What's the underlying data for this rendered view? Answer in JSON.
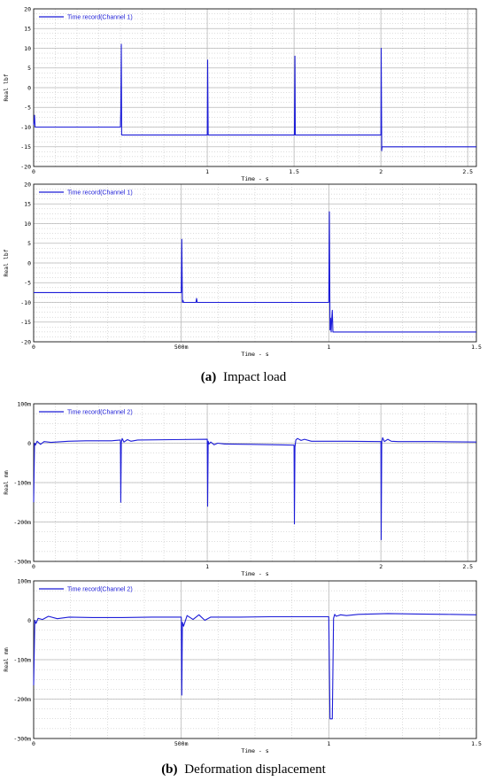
{
  "captions": {
    "a_tag": "(a)",
    "a_text": "Impact load",
    "b_tag": "(b)",
    "b_text": "Deformation displacement"
  },
  "colors": {
    "series": "#1c1cd8",
    "grid": "#b9b9b9",
    "plot_bg": "#ffffff",
    "border": "#000000"
  },
  "chart_data": [
    {
      "type": "line",
      "title": "",
      "xlabel": "Time - s",
      "ylabel": "Real lbf",
      "xlim": [
        0,
        2.55
      ],
      "ylim": [
        -20,
        20
      ],
      "xticks": [
        0,
        1,
        1.5,
        2,
        2.5
      ],
      "xtick_labels": [
        "0",
        "1",
        "1.5",
        "2",
        "2.5"
      ],
      "yticks": [
        -20,
        -15,
        -10,
        -5,
        0,
        5,
        10,
        15,
        20
      ],
      "ytick_labels": [
        "-20",
        "-15",
        "-10",
        "-5",
        "0",
        "5",
        "10",
        "15",
        "20"
      ],
      "grid": true,
      "legend": "top-left",
      "series": [
        {
          "name": "Time record(Channel 1)",
          "x": [
            0,
            0.005,
            0.008,
            0.01,
            0.015,
            0.02,
            0.24,
            0.25,
            0.252,
            0.26,
            0.5,
            0.502,
            0.505,
            0.507,
            0.51,
            0.75,
            0.752,
            0.755,
            0.757,
            0.76,
            1.0,
            1.002,
            1.005,
            1.007,
            1.01,
            1.25,
            1.252,
            1.255,
            1.257,
            1.26,
            1.5,
            1.502,
            1.505,
            1.507,
            1.51,
            1.75,
            1.752,
            1.755,
            1.757,
            1.76,
            2.0,
            2.002,
            2.005,
            2.007,
            2.01,
            2.55
          ],
          "y": [
            -9.5,
            -7,
            -10,
            -10,
            -10,
            -10,
            -10,
            -10,
            -10,
            -10,
            -10,
            -6,
            11,
            -12,
            -12,
            -12,
            -12,
            -12,
            -12,
            -12,
            -12,
            7,
            -12,
            -12,
            -12,
            -12,
            -12,
            -12,
            -12,
            -12,
            -12,
            -12,
            8,
            -12,
            -12,
            -12,
            -12,
            -12,
            -12,
            -12,
            -12,
            10,
            -16,
            -15,
            -15,
            -15
          ]
        }
      ]
    },
    {
      "type": "line",
      "title": "",
      "xlabel": "Time - s",
      "ylabel": "Real lbf",
      "xlim": [
        0,
        1.5
      ],
      "ylim": [
        -20,
        20
      ],
      "xticks": [
        0,
        0.5,
        1,
        1.5
      ],
      "xtick_labels": [
        "0",
        "500m",
        "1",
        "1.5"
      ],
      "yticks": [
        -20,
        -15,
        -10,
        -5,
        0,
        5,
        10,
        15,
        20
      ],
      "ytick_labels": [
        "-20",
        "-15",
        "-10",
        "-5",
        "0",
        "5",
        "10",
        "15",
        "20"
      ],
      "grid": true,
      "legend": "top-left",
      "series": [
        {
          "name": "Time record(Channel 1)",
          "x": [
            0,
            0.5,
            0.502,
            0.504,
            0.506,
            0.508,
            0.51,
            0.55,
            0.552,
            0.554,
            0.6,
            1.0,
            1.002,
            1.004,
            1.006,
            1.008,
            1.01,
            1.012,
            1.014,
            1.016,
            1.02,
            1.5
          ],
          "y": [
            -7.5,
            -7.5,
            6,
            -10,
            -9.5,
            -10,
            -10,
            -10,
            -9,
            -10,
            -10,
            -10,
            13,
            -17,
            -14,
            -17.5,
            -14,
            -12,
            -17.5,
            -17.5,
            -17.5,
            -17.5
          ]
        }
      ]
    },
    {
      "type": "line",
      "title": "",
      "xlabel": "Time - s",
      "ylabel": "Real mm",
      "xlim": [
        0,
        2.55
      ],
      "ylim": [
        -300,
        100
      ],
      "xticks": [
        0,
        1,
        2,
        2.5
      ],
      "xtick_labels": [
        "0",
        "1",
        "2",
        "2.5"
      ],
      "yticks": [
        -300,
        -200,
        -100,
        0,
        100
      ],
      "ytick_labels": [
        "-300m",
        "-200m",
        "-100m",
        "0",
        "100m"
      ],
      "grid": true,
      "legend": "top-left",
      "series": [
        {
          "name": "Time record(Channel 2)",
          "x": [
            0,
            0.005,
            0.01,
            0.02,
            0.04,
            0.06,
            0.1,
            0.2,
            0.3,
            0.45,
            0.5,
            0.502,
            0.505,
            0.51,
            0.52,
            0.54,
            0.56,
            0.6,
            0.8,
            1.0,
            1.002,
            1.005,
            1.01,
            1.02,
            1.04,
            1.06,
            1.1,
            1.25,
            1.5,
            1.502,
            1.505,
            1.51,
            1.52,
            1.54,
            1.56,
            1.6,
            1.8,
            2.0,
            2.002,
            2.005,
            2.01,
            2.02,
            2.04,
            2.06,
            2.1,
            2.3,
            2.55
          ],
          "y": [
            -150,
            0,
            -5,
            5,
            -3,
            4,
            2,
            5,
            6,
            6,
            8,
            -150,
            2,
            12,
            3,
            9,
            5,
            8,
            9,
            10,
            -160,
            5,
            -2,
            3,
            -4,
            0,
            -2,
            -3,
            -5,
            -205,
            -10,
            8,
            12,
            7,
            10,
            5,
            5,
            4,
            -245,
            2,
            14,
            4,
            10,
            5,
            4,
            4,
            3
          ]
        }
      ]
    },
    {
      "type": "line",
      "title": "",
      "xlabel": "Time - s",
      "ylabel": "Real mm",
      "xlim": [
        0,
        1.5
      ],
      "ylim": [
        -300,
        100
      ],
      "xticks": [
        0,
        0.5,
        1,
        1.5
      ],
      "xtick_labels": [
        "0",
        "500m",
        "1",
        "1.5"
      ],
      "yticks": [
        -300,
        -200,
        -100,
        0,
        100
      ],
      "ytick_labels": [
        "-300m",
        "-200m",
        "-100m",
        "0",
        "100m"
      ],
      "grid": true,
      "legend": "top-left",
      "series": [
        {
          "name": "Time record(Channel 2)",
          "x": [
            0,
            0.004,
            0.008,
            0.015,
            0.03,
            0.05,
            0.08,
            0.12,
            0.2,
            0.3,
            0.4,
            0.5,
            0.502,
            0.504,
            0.508,
            0.52,
            0.54,
            0.56,
            0.58,
            0.6,
            0.7,
            0.8,
            0.9,
            1.0,
            1.004,
            1.008,
            1.012,
            1.016,
            1.02,
            1.025,
            1.04,
            1.06,
            1.1,
            1.2,
            1.3,
            1.4,
            1.5
          ],
          "y": [
            -165,
            0,
            -8,
            5,
            2,
            10,
            4,
            8,
            7,
            7,
            8,
            8,
            -190,
            -5,
            -15,
            12,
            2,
            14,
            0,
            8,
            8,
            9,
            9,
            9,
            -250,
            -250,
            -250,
            5,
            15,
            10,
            14,
            12,
            15,
            17,
            16,
            15,
            14
          ]
        }
      ]
    }
  ]
}
